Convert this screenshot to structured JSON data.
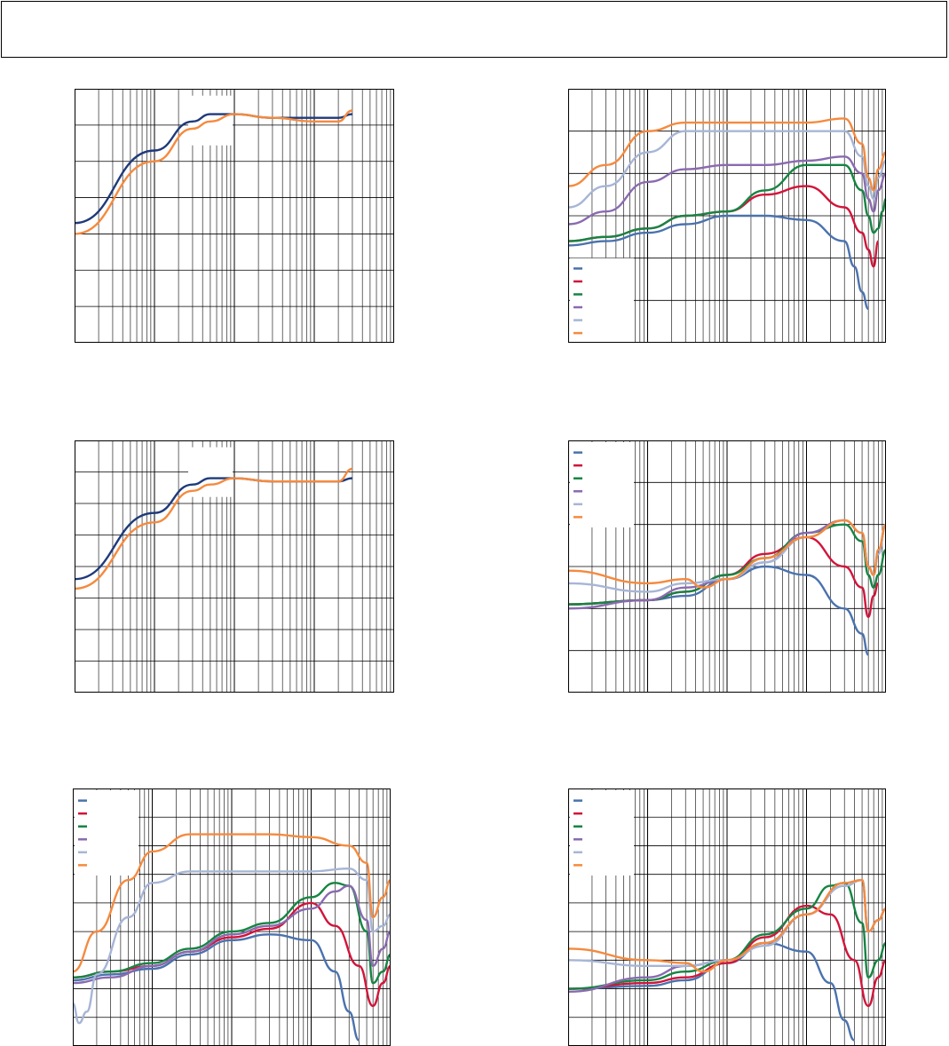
{
  "header": {
    "text": ""
  },
  "colors": {
    "navy": "#1f3a7a",
    "orange": "#f58a3e",
    "blue": "#4a72ae",
    "red": "#d2143a",
    "green": "#168443",
    "purple": "#8a6ab0",
    "lightblue": "#a7b5d6",
    "lightorange": "#f58a3e"
  },
  "chart_data": [
    {
      "type": "line",
      "xscale": "log",
      "xlim": [
        0.001,
        10
      ],
      "ylim": [
        0,
        7
      ],
      "grid": true,
      "legend": "top-center",
      "series": [
        {
          "color": "#1f3a7a",
          "x": [
            0.001,
            0.01,
            0.03,
            0.05,
            0.1,
            0.3,
            1,
            2,
            3
          ],
          "y": [
            3.3,
            5.3,
            6.1,
            6.3,
            6.3,
            6.2,
            6.2,
            6.2,
            6.3
          ]
        },
        {
          "color": "#f58a3e",
          "x": [
            0.001,
            0.01,
            0.03,
            0.05,
            0.1,
            0.3,
            1,
            2,
            3
          ],
          "y": [
            3.0,
            5.0,
            5.9,
            6.1,
            6.3,
            6.2,
            6.1,
            6.1,
            6.4
          ]
        }
      ]
    },
    {
      "type": "line",
      "xscale": "log",
      "xlim": [
        0.01,
        100
      ],
      "ylim": [
        0,
        6
      ],
      "grid": true,
      "legend": "bottom-left",
      "series": [
        {
          "color": "#4a72ae",
          "x": [
            0.01,
            0.03,
            0.1,
            0.3,
            1,
            3,
            10,
            30,
            40,
            50,
            60
          ],
          "y": [
            2.3,
            2.4,
            2.6,
            2.8,
            3.0,
            3.0,
            2.9,
            2.4,
            1.8,
            1.2,
            0.8
          ]
        },
        {
          "color": "#d2143a",
          "x": [
            0.01,
            0.03,
            0.1,
            0.3,
            1,
            3,
            10,
            30,
            50,
            60,
            70,
            80
          ],
          "y": [
            2.4,
            2.5,
            2.7,
            3.0,
            3.1,
            3.5,
            3.7,
            3.2,
            2.6,
            2.2,
            1.8,
            2.4
          ]
        },
        {
          "color": "#168443",
          "x": [
            0.01,
            0.03,
            0.1,
            0.3,
            1,
            3,
            10,
            30,
            50,
            60,
            70,
            80,
            90,
            100
          ],
          "y": [
            2.4,
            2.5,
            2.7,
            3.0,
            3.1,
            3.6,
            4.2,
            4.2,
            3.6,
            3.0,
            2.6,
            2.7,
            3.1,
            3.4
          ]
        },
        {
          "color": "#8a6ab0",
          "x": [
            0.01,
            0.03,
            0.1,
            0.3,
            1,
            3,
            10,
            30,
            50,
            60,
            70,
            80,
            100
          ],
          "y": [
            2.8,
            3.1,
            3.8,
            4.1,
            4.2,
            4.2,
            4.3,
            4.4,
            4.0,
            3.4,
            3.1,
            3.6,
            4.0
          ]
        },
        {
          "color": "#a7b5d6",
          "x": [
            0.01,
            0.03,
            0.1,
            0.3,
            1,
            3,
            10,
            30,
            50,
            60,
            70,
            80,
            100
          ],
          "y": [
            3.2,
            3.7,
            4.5,
            5.0,
            5.0,
            5.0,
            5.0,
            5.0,
            4.4,
            3.7,
            3.4,
            3.9,
            4.3
          ]
        },
        {
          "color": "#f58a3e",
          "x": [
            0.01,
            0.03,
            0.1,
            0.3,
            1,
            3,
            10,
            30,
            50,
            60,
            70,
            80,
            100
          ],
          "y": [
            3.7,
            4.2,
            5.0,
            5.2,
            5.2,
            5.2,
            5.2,
            5.3,
            4.7,
            3.9,
            3.6,
            4.1,
            4.5
          ]
        }
      ]
    },
    {
      "type": "line",
      "xscale": "log",
      "xlim": [
        0.001,
        10
      ],
      "ylim": [
        0,
        8
      ],
      "grid": true,
      "legend": "top-center",
      "series": [
        {
          "color": "#1f3a7a",
          "x": [
            0.001,
            0.01,
            0.03,
            0.05,
            0.1,
            0.3,
            1,
            2,
            3
          ],
          "y": [
            3.6,
            5.7,
            6.6,
            6.8,
            6.8,
            6.7,
            6.7,
            6.7,
            6.8
          ]
        },
        {
          "color": "#f58a3e",
          "x": [
            0.001,
            0.01,
            0.03,
            0.05,
            0.1,
            0.3,
            1,
            2,
            3
          ],
          "y": [
            3.3,
            5.4,
            6.4,
            6.6,
            6.8,
            6.7,
            6.7,
            6.7,
            7.1
          ]
        }
      ]
    },
    {
      "type": "line",
      "xscale": "log",
      "xlim": [
        0.01,
        100
      ],
      "ylim": [
        0,
        6
      ],
      "grid": true,
      "legend": "top-left",
      "series": [
        {
          "color": "#4a72ae",
          "x": [
            0.01,
            0.1,
            0.3,
            1,
            3,
            10,
            30,
            50,
            60
          ],
          "y": [
            2.1,
            2.2,
            2.3,
            2.7,
            3.0,
            2.8,
            2.0,
            1.4,
            0.9
          ]
        },
        {
          "color": "#d2143a",
          "x": [
            0.01,
            0.1,
            0.3,
            1,
            3,
            10,
            30,
            50,
            60,
            70,
            80
          ],
          "y": [
            2.1,
            2.2,
            2.4,
            2.8,
            3.3,
            3.7,
            3.0,
            2.5,
            1.8,
            2.3,
            2.6
          ]
        },
        {
          "color": "#168443",
          "x": [
            0.01,
            0.1,
            0.3,
            1,
            3,
            10,
            30,
            50,
            60,
            70,
            80,
            100
          ],
          "y": [
            2.1,
            2.2,
            2.4,
            2.8,
            3.2,
            3.8,
            4.0,
            3.6,
            2.8,
            2.5,
            2.8,
            3.4
          ]
        },
        {
          "color": "#8a6ab0",
          "x": [
            0.01,
            0.1,
            0.3,
            1,
            3,
            10,
            30,
            50,
            60,
            70,
            80,
            100
          ],
          "y": [
            2.0,
            2.2,
            2.5,
            2.7,
            3.1,
            3.8,
            4.1,
            3.8,
            3.0,
            2.8,
            3.3,
            4.0
          ]
        },
        {
          "color": "#a7b5d6",
          "x": [
            0.01,
            0.1,
            0.3,
            1,
            3,
            10,
            30,
            50,
            60,
            70,
            80,
            100
          ],
          "y": [
            2.6,
            2.4,
            2.6,
            2.7,
            3.1,
            3.7,
            4.1,
            3.8,
            3.0,
            2.8,
            3.3,
            4.0
          ]
        },
        {
          "color": "#f58a3e",
          "x": [
            0.01,
            0.1,
            0.3,
            0.5,
            1,
            3,
            10,
            30,
            50,
            60,
            70,
            80,
            100
          ],
          "y": [
            2.9,
            2.6,
            2.7,
            2.5,
            2.7,
            3.2,
            3.7,
            4.1,
            3.8,
            3.0,
            2.8,
            3.4,
            4.0
          ]
        }
      ]
    },
    {
      "type": "line",
      "xscale": "log",
      "xlim": [
        0.01,
        100
      ],
      "ylim": [
        0,
        9
      ],
      "grid": true,
      "legend": "top-left",
      "series": [
        {
          "color": "#4a72ae",
          "x": [
            0.01,
            0.03,
            0.1,
            0.3,
            1,
            3,
            10,
            20,
            30,
            40
          ],
          "y": [
            2.3,
            2.5,
            2.7,
            3.2,
            3.7,
            3.9,
            3.7,
            2.6,
            1.2,
            0.2
          ]
        },
        {
          "color": "#d2143a",
          "x": [
            0.01,
            0.03,
            0.1,
            0.3,
            1,
            3,
            10,
            20,
            40,
            60,
            80,
            100
          ],
          "y": [
            2.4,
            2.6,
            2.8,
            3.3,
            3.8,
            4.1,
            5.0,
            4.2,
            2.8,
            1.4,
            2.2,
            2.8
          ]
        },
        {
          "color": "#168443",
          "x": [
            0.01,
            0.03,
            0.1,
            0.3,
            1,
            3,
            10,
            20,
            30,
            50,
            60,
            80,
            100
          ],
          "y": [
            2.4,
            2.6,
            2.9,
            3.4,
            4.0,
            4.3,
            5.2,
            5.7,
            5.6,
            4.0,
            2.2,
            2.6,
            3.2
          ]
        },
        {
          "color": "#8a6ab0",
          "x": [
            0.01,
            0.03,
            0.1,
            0.3,
            1,
            3,
            10,
            20,
            30,
            50,
            60,
            80,
            100
          ],
          "y": [
            2.2,
            2.4,
            2.8,
            3.3,
            3.9,
            4.2,
            4.8,
            5.4,
            5.6,
            4.4,
            2.8,
            3.4,
            4.0
          ]
        },
        {
          "color": "#a7b5d6",
          "x": [
            0.01,
            0.012,
            0.015,
            0.02,
            0.05,
            0.1,
            0.3,
            1,
            3,
            10,
            30,
            50,
            60,
            80,
            100
          ],
          "y": [
            1.5,
            0.8,
            1.2,
            2.5,
            4.5,
            5.7,
            6.1,
            6.1,
            6.1,
            6.1,
            6.2,
            5.8,
            4.0,
            4.2,
            4.6
          ]
        },
        {
          "color": "#f58a3e",
          "x": [
            0.01,
            0.02,
            0.05,
            0.1,
            0.3,
            1,
            3,
            10,
            30,
            50,
            60,
            80,
            100
          ],
          "y": [
            2.6,
            4.0,
            5.8,
            6.8,
            7.4,
            7.4,
            7.4,
            7.3,
            7.0,
            6.4,
            4.5,
            5.2,
            5.8
          ]
        }
      ]
    },
    {
      "type": "line",
      "xscale": "log",
      "xlim": [
        0.01,
        100
      ],
      "ylim": [
        0,
        9
      ],
      "grid": true,
      "legend": "top-left",
      "series": [
        {
          "color": "#4a72ae",
          "x": [
            0.01,
            0.1,
            0.3,
            1,
            3,
            10,
            20,
            30,
            40
          ],
          "y": [
            2.0,
            2.1,
            2.3,
            2.9,
            3.6,
            3.3,
            2.2,
            0.9,
            0.2
          ]
        },
        {
          "color": "#d2143a",
          "x": [
            0.01,
            0.1,
            0.3,
            1,
            3,
            10,
            20,
            40,
            60,
            80,
            100
          ],
          "y": [
            2.0,
            2.2,
            2.4,
            2.9,
            3.8,
            4.9,
            4.6,
            3.0,
            1.4,
            2.4,
            3.0
          ]
        },
        {
          "color": "#168443",
          "x": [
            0.01,
            0.1,
            0.3,
            1,
            3,
            10,
            20,
            30,
            50,
            60,
            80,
            100
          ],
          "y": [
            2.0,
            2.3,
            2.6,
            3.0,
            3.9,
            4.8,
            5.6,
            5.7,
            4.3,
            2.4,
            3.0,
            3.6
          ]
        },
        {
          "color": "#8a6ab0",
          "x": [
            0.01,
            0.1,
            0.3,
            1,
            3,
            10,
            30,
            50,
            60,
            80,
            100
          ],
          "y": [
            1.9,
            2.4,
            2.8,
            3.0,
            3.6,
            4.6,
            5.6,
            5.8,
            4.0,
            4.4,
            4.8
          ]
        },
        {
          "color": "#a7b5d6",
          "x": [
            0.01,
            0.1,
            0.3,
            1,
            3,
            10,
            30,
            50,
            60,
            80,
            100
          ],
          "y": [
            3.0,
            2.8,
            2.8,
            3.0,
            3.5,
            4.6,
            5.6,
            5.8,
            4.0,
            4.4,
            4.8
          ]
        },
        {
          "color": "#f58a3e",
          "x": [
            0.01,
            0.1,
            0.3,
            0.5,
            1,
            3,
            10,
            30,
            50,
            60,
            80,
            100
          ],
          "y": [
            3.4,
            3.0,
            2.9,
            2.6,
            3.0,
            3.6,
            4.6,
            5.7,
            5.8,
            4.0,
            4.4,
            4.8
          ]
        }
      ]
    }
  ]
}
